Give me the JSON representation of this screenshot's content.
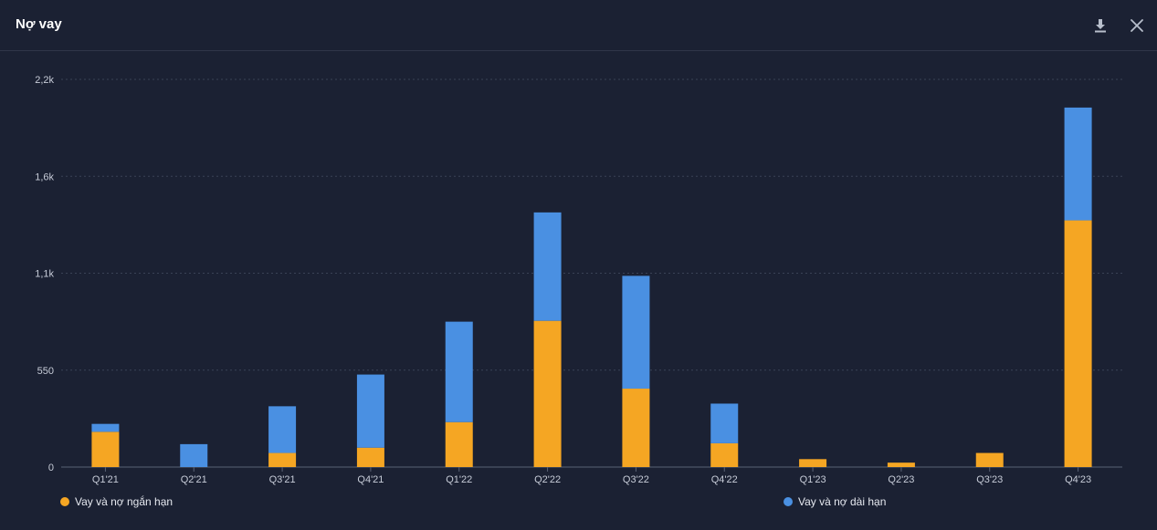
{
  "header": {
    "title": "Nợ vay",
    "download_icon": "download-icon",
    "close_icon": "close-icon"
  },
  "colors": {
    "short_term": "#f5a623",
    "long_term": "#4a90e2",
    "grid": "#3a4256",
    "axis_text": "#c7ccd8"
  },
  "chart_data": {
    "type": "bar",
    "stacked": true,
    "categories": [
      "Q1'21",
      "Q2'21",
      "Q3'21",
      "Q4'21",
      "Q1'22",
      "Q2'22",
      "Q3'22",
      "Q4'22",
      "Q1'23",
      "Q2'23",
      "Q3'23",
      "Q4'23"
    ],
    "series": [
      {
        "name": "Vay và nợ ngắn hạn",
        "values": [
          200,
          0,
          80,
          110,
          255,
          830,
          445,
          135,
          45,
          25,
          80,
          1400
        ]
      },
      {
        "name": "Vay và nợ dài hạn",
        "values": [
          45,
          130,
          265,
          415,
          570,
          615,
          640,
          225,
          0,
          0,
          0,
          640
        ]
      }
    ],
    "y_ticks": [
      {
        "value": 0,
        "label": "0"
      },
      {
        "value": 550,
        "label": "550"
      },
      {
        "value": 1100,
        "label": "1,1k"
      },
      {
        "value": 1650,
        "label": "1,6k"
      },
      {
        "value": 2200,
        "label": "2,2k"
      }
    ],
    "ylim": [
      0,
      2200
    ],
    "grid": true,
    "legend_position": "bottom"
  }
}
